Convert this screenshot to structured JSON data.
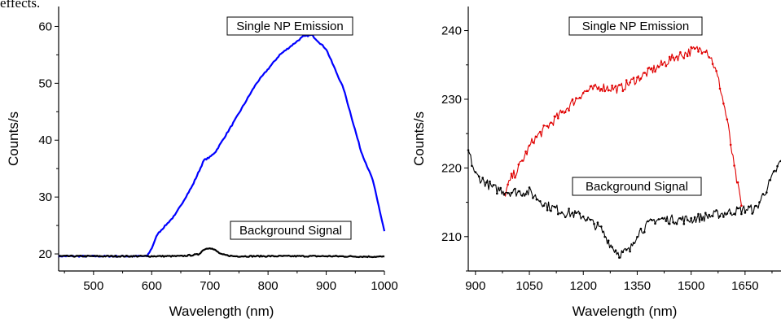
{
  "header_fragment": "effects.",
  "chart_data": [
    {
      "type": "line",
      "xlabel": "Wavelength (nm)",
      "ylabel": "Counts/s",
      "xlim": [
        440,
        1000
      ],
      "ylim": [
        17,
        63.5
      ],
      "xticks": [
        "500",
        "600",
        "700",
        "800",
        "900",
        "1000"
      ],
      "yticks": [
        "20",
        "30",
        "40",
        "50",
        "60"
      ],
      "annotations": [
        "Single NP Emission",
        "Background Signal"
      ],
      "series": [
        {
          "color": "#0000ff",
          "x": [
            440,
            500,
            560,
            592,
            600,
            610,
            640,
            670,
            690,
            700,
            710,
            740,
            780,
            820,
            860,
            875,
            900,
            930,
            960,
            980,
            1000
          ],
          "y": [
            19.6,
            19.6,
            19.6,
            19.6,
            21.0,
            23.5,
            26.8,
            32.0,
            36.5,
            37.0,
            38.0,
            43.0,
            50.0,
            55.0,
            58.2,
            58.5,
            56.0,
            49.0,
            38.0,
            33.0,
            24.0
          ]
        },
        {
          "color": "#000000",
          "x": [
            440,
            500,
            600,
            650,
            680,
            690,
            700,
            710,
            720,
            740,
            800,
            900,
            1000
          ],
          "y": [
            19.6,
            19.6,
            19.6,
            19.6,
            19.9,
            20.8,
            21.1,
            20.6,
            19.9,
            19.6,
            19.6,
            19.6,
            19.5
          ]
        }
      ]
    },
    {
      "type": "line",
      "xlabel": "Wavelength (nm)",
      "ylabel": "Counts/s",
      "xlim": [
        880,
        1750
      ],
      "ylim": [
        205,
        243.5
      ],
      "xticks": [
        "900",
        "1050",
        "1200",
        "1350",
        "1500",
        "1650"
      ],
      "yticks": [
        "210",
        "220",
        "230",
        "240"
      ],
      "annotations": [
        "Single NP Emission",
        "Background Signal"
      ],
      "series": [
        {
          "color": "#e00000",
          "x": [
            980,
            1000,
            1020,
            1040,
            1060,
            1080,
            1100,
            1150,
            1200,
            1250,
            1300,
            1350,
            1400,
            1450,
            1500,
            1540,
            1560,
            1580,
            1600,
            1620,
            1640
          ],
          "y": [
            216.0,
            218.5,
            220.0,
            222.0,
            224.0,
            225.0,
            226.0,
            228.5,
            231.0,
            231.8,
            231.5,
            233.0,
            234.5,
            236.0,
            237.0,
            237.5,
            235.5,
            232.0,
            227.0,
            220.0,
            214.5
          ]
        },
        {
          "color": "#000000",
          "x": [
            880,
            900,
            950,
            1000,
            1050,
            1100,
            1150,
            1200,
            1250,
            1280,
            1300,
            1330,
            1350,
            1400,
            1450,
            1500,
            1550,
            1600,
            1650,
            1680,
            1700,
            1750
          ],
          "y": [
            222.5,
            219.0,
            217.0,
            216.5,
            216.5,
            214.5,
            213.5,
            213.0,
            211.0,
            208.5,
            207.5,
            208.0,
            210.5,
            212.5,
            212.5,
            212.5,
            213.0,
            213.5,
            214.0,
            214.0,
            216.0,
            221.0
          ]
        }
      ]
    }
  ]
}
